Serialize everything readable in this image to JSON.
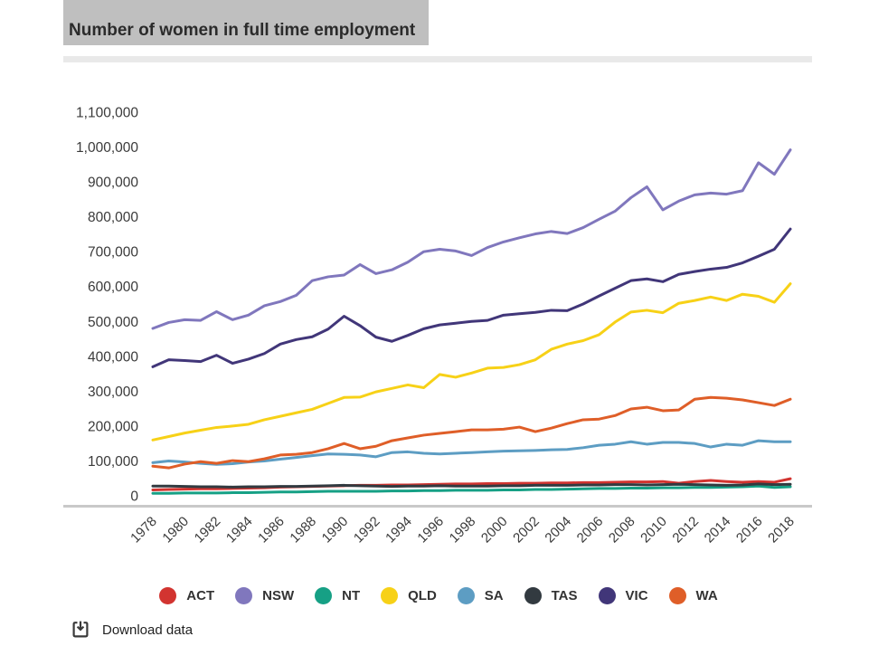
{
  "header": {
    "title": "Number of women in full time employment"
  },
  "chart_data": {
    "type": "line",
    "title": "Number of women in full time employment",
    "xlabel": "",
    "ylabel": "",
    "grid": false,
    "legend_position": "bottom",
    "ylim": [
      0,
      1100000
    ],
    "y_ticks": [
      {
        "value": 0,
        "label": "0"
      },
      {
        "value": 100000,
        "label": "100,000"
      },
      {
        "value": 200000,
        "label": "200,000"
      },
      {
        "value": 300000,
        "label": "300,000"
      },
      {
        "value": 400000,
        "label": "400,000"
      },
      {
        "value": 500000,
        "label": "500,000"
      },
      {
        "value": 600000,
        "label": "600,000"
      },
      {
        "value": 700000,
        "label": "700,000"
      },
      {
        "value": 800000,
        "label": "800,000"
      },
      {
        "value": 900000,
        "label": "900,000"
      },
      {
        "value": 1000000,
        "label": "1,000,000"
      },
      {
        "value": 1100000,
        "label": "1,100,000"
      }
    ],
    "x": [
      1978,
      1979,
      1980,
      1981,
      1982,
      1983,
      1984,
      1985,
      1986,
      1987,
      1988,
      1989,
      1990,
      1991,
      1992,
      1993,
      1994,
      1995,
      1996,
      1997,
      1998,
      1999,
      2000,
      2001,
      2002,
      2003,
      2004,
      2005,
      2006,
      2007,
      2008,
      2009,
      2010,
      2011,
      2012,
      2013,
      2014,
      2015,
      2016,
      2017,
      2018
    ],
    "x_ticks": [
      1978,
      1980,
      1982,
      1984,
      1986,
      1988,
      1990,
      1992,
      1994,
      1996,
      1998,
      2000,
      2002,
      2004,
      2006,
      2008,
      2010,
      2012,
      2014,
      2016,
      2018
    ],
    "series": [
      {
        "name": "ACT",
        "color": "#d23430",
        "values": [
          17000,
          18000,
          19000,
          20000,
          20000,
          21000,
          22000,
          23000,
          25000,
          26000,
          27000,
          28000,
          29000,
          30000,
          30000,
          31000,
          31000,
          32000,
          33000,
          34000,
          34000,
          35000,
          35000,
          36000,
          36000,
          37000,
          37000,
          38000,
          38000,
          39000,
          40000,
          40000,
          41000,
          36000,
          41000,
          44000,
          41000,
          39000,
          41000,
          39000,
          49000
        ]
      },
      {
        "name": "NSW",
        "color": "#8077bd",
        "values": [
          480000,
          497000,
          505000,
          503000,
          528000,
          505000,
          518000,
          545000,
          557000,
          575000,
          617000,
          628000,
          633000,
          663000,
          637000,
          648000,
          670000,
          700000,
          707000,
          702000,
          689000,
          712000,
          728000,
          740000,
          751000,
          758000,
          752000,
          769000,
          793000,
          816000,
          855000,
          886000,
          820000,
          845000,
          863000,
          868000,
          865000,
          875000,
          955000,
          922000,
          992000
        ]
      },
      {
        "name": "NT",
        "color": "#16a085",
        "values": [
          7000,
          7000,
          8000,
          8000,
          8000,
          9000,
          9000,
          10000,
          11000,
          11000,
          12000,
          13000,
          13000,
          13000,
          13000,
          14000,
          14000,
          15000,
          15000,
          16000,
          16000,
          16000,
          17000,
          17000,
          18000,
          18000,
          19000,
          20000,
          21000,
          21000,
          22000,
          22000,
          23000,
          23000,
          24000,
          24000,
          25000,
          26000,
          28000,
          24000,
          26000
        ]
      },
      {
        "name": "QLD",
        "color": "#f7d117",
        "values": [
          160000,
          170000,
          180000,
          188000,
          196000,
          200000,
          205000,
          218000,
          228000,
          238000,
          248000,
          265000,
          282000,
          283000,
          298000,
          308000,
          318000,
          310000,
          348000,
          340000,
          352000,
          366000,
          368000,
          376000,
          390000,
          420000,
          435000,
          445000,
          462000,
          498000,
          527000,
          532000,
          525000,
          552000,
          560000,
          570000,
          560000,
          578000,
          572000,
          555000,
          608000
        ]
      },
      {
        "name": "SA",
        "color": "#5d9dc3",
        "values": [
          95000,
          100000,
          97000,
          93000,
          90000,
          92000,
          97000,
          100000,
          105000,
          110000,
          115000,
          120000,
          119000,
          117000,
          112000,
          124000,
          126000,
          122000,
          120000,
          122000,
          124000,
          126000,
          128000,
          129000,
          130000,
          132000,
          133000,
          138000,
          145000,
          148000,
          155000,
          148000,
          153000,
          153000,
          150000,
          140000,
          148000,
          145000,
          158000,
          155000,
          155000
        ]
      },
      {
        "name": "TAS",
        "color": "#323a40",
        "values": [
          28000,
          28000,
          27000,
          26000,
          26000,
          25000,
          26000,
          26000,
          27000,
          27000,
          28000,
          29000,
          30000,
          29000,
          28000,
          27000,
          28000,
          28000,
          29000,
          28000,
          28000,
          28000,
          29000,
          29000,
          30000,
          30000,
          30000,
          31000,
          31000,
          32000,
          32000,
          31000,
          32000,
          33000,
          32000,
          31000,
          30000,
          31000,
          34000,
          32000,
          33000
        ]
      },
      {
        "name": "VIC",
        "color": "#413679",
        "values": [
          370000,
          390000,
          388000,
          385000,
          403000,
          380000,
          392000,
          408000,
          435000,
          448000,
          456000,
          478000,
          515000,
          488000,
          455000,
          443000,
          460000,
          479000,
          490000,
          495000,
          500000,
          503000,
          518000,
          522000,
          526000,
          532000,
          531000,
          550000,
          573000,
          595000,
          617000,
          622000,
          614000,
          635000,
          643000,
          650000,
          655000,
          668000,
          687000,
          707000,
          765000
        ]
      },
      {
        "name": "WA",
        "color": "#df5e28",
        "values": [
          85000,
          80000,
          91000,
          98000,
          93000,
          101000,
          98000,
          106000,
          117000,
          119000,
          124000,
          135000,
          150000,
          135000,
          142000,
          158000,
          166000,
          174000,
          179000,
          184000,
          189000,
          189000,
          191000,
          197000,
          184000,
          194000,
          207000,
          218000,
          220000,
          230000,
          249000,
          254000,
          244000,
          246000,
          277000,
          282000,
          280000,
          275000,
          267000,
          259000,
          277000
        ]
      }
    ]
  },
  "legend": {
    "items": [
      {
        "label": "ACT",
        "color": "#d23430"
      },
      {
        "label": "NSW",
        "color": "#8077bd"
      },
      {
        "label": "NT",
        "color": "#16a085"
      },
      {
        "label": "QLD",
        "color": "#f7d117"
      },
      {
        "label": "SA",
        "color": "#5d9dc3"
      },
      {
        "label": "TAS",
        "color": "#323a40"
      },
      {
        "label": "VIC",
        "color": "#413679"
      },
      {
        "label": "WA",
        "color": "#df5e28"
      }
    ]
  },
  "footer": {
    "download_label": "Download data"
  }
}
